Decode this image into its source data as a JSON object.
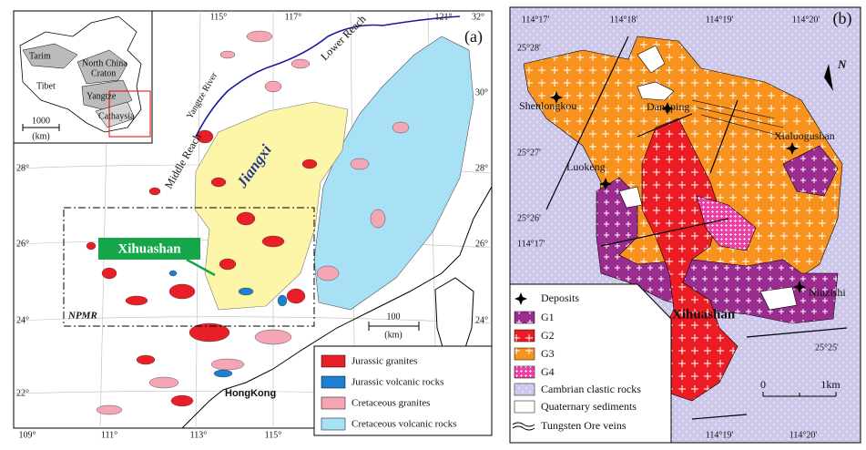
{
  "panel_a": {
    "label": "(a)",
    "top_lon": [
      "115°",
      "117°",
      "121°",
      "32°"
    ],
    "bottom_lon": [
      "109°",
      "111°",
      "113°",
      "115°"
    ],
    "left_lat": [
      "28°",
      "26°",
      "24°",
      "22°"
    ],
    "right_lat": [
      "30°",
      "28°",
      "26°",
      "24°"
    ],
    "inset": {
      "labels": [
        "Tarim",
        "North China",
        "Craton",
        "Tibet",
        "Yangtze",
        "Cathaysia"
      ],
      "scale": "1000",
      "unit": "(km)"
    },
    "annotations": {
      "middle_reach": "Middle Reach",
      "yangtze_river": "Yangtze River",
      "lower_reach": "Lower Reach",
      "province": "Jiangxi",
      "site": "Xihuashan",
      "region": "NPMR",
      "scale": "100",
      "unit": "(km)",
      "city": "HongKong"
    },
    "legend": [
      "Jurassic granites",
      "Jurassic volcanic rocks",
      "Cretaceous granites",
      "Cretaceous volcanic rocks"
    ]
  },
  "panel_b": {
    "label": "(b)",
    "top_lon": [
      "114°17'",
      "114°18'",
      "114°19'",
      "114°20'"
    ],
    "bottom_lon": [
      "114°19'",
      "114°20'"
    ],
    "lat": [
      "25°28'",
      "25°27'",
      "25°26'",
      "25°25'"
    ],
    "inner_lon": "114°17'",
    "north": "N",
    "places": [
      "Shenlongkou",
      "Dangping",
      "Xialuogushan",
      "Luokeng",
      "Niuzishi",
      "Xihuashan"
    ],
    "scale": [
      "0",
      "1km"
    ],
    "legend": [
      "Deposits",
      "G1",
      "G2",
      "G3",
      "G4",
      "Cambrian clastic rocks",
      "Quaternary sediments",
      "Tungsten Ore veins"
    ]
  }
}
